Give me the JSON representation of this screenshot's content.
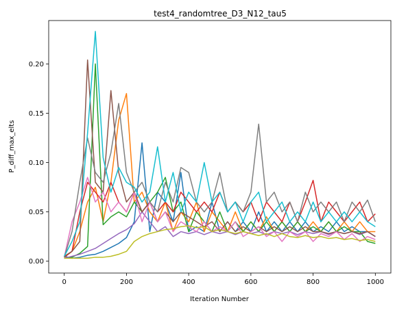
{
  "chart_data": {
    "type": "line",
    "title": "test4_randomtree_D3_N12_tau5",
    "xlabel": "Iteration Number",
    "ylabel": "P_diff_max_elts",
    "xlim": [
      -50,
      1050
    ],
    "ylim": [
      -0.012,
      0.244
    ],
    "xticks": [
      0,
      200,
      400,
      600,
      800,
      1000
    ],
    "yticks": [
      0.0,
      0.05,
      0.1,
      0.15,
      0.2
    ],
    "ytick_labels": [
      "0.00",
      "0.05",
      "0.10",
      "0.15",
      "0.20"
    ],
    "grid": false,
    "series": [
      {
        "color": "#1f77b4",
        "x": [
          0,
          25,
          50,
          75,
          100,
          125,
          150,
          175,
          200,
          225,
          250,
          275,
          300,
          325,
          350,
          375,
          400,
          425,
          450,
          475,
          500,
          525,
          550,
          575,
          600,
          625,
          650,
          675,
          700,
          725,
          750,
          775,
          800,
          825,
          850,
          875,
          900,
          925,
          950,
          975,
          1000
        ],
        "y": [
          0.005,
          0.003,
          0.004,
          0.006,
          0.007,
          0.01,
          0.014,
          0.018,
          0.024,
          0.04,
          0.12,
          0.03,
          0.07,
          0.06,
          0.04,
          0.09,
          0.03,
          0.035,
          0.03,
          0.06,
          0.03,
          0.04,
          0.03,
          0.04,
          0.03,
          0.05,
          0.03,
          0.04,
          0.03,
          0.04,
          0.03,
          0.04,
          0.03,
          0.035,
          0.03,
          0.04,
          0.03,
          0.035,
          0.03,
          0.03,
          0.025
        ]
      },
      {
        "color": "#ff7f0e",
        "x": [
          0,
          25,
          50,
          75,
          100,
          125,
          150,
          175,
          200,
          225,
          250,
          275,
          300,
          325,
          350,
          375,
          400,
          425,
          450,
          475,
          500,
          525,
          550,
          575,
          600,
          625,
          650,
          675,
          700,
          725,
          750,
          775,
          800,
          825,
          850,
          875,
          900,
          925,
          950,
          975,
          1000
        ],
        "y": [
          0.004,
          0.01,
          0.03,
          0.06,
          0.075,
          0.04,
          0.08,
          0.143,
          0.17,
          0.06,
          0.07,
          0.05,
          0.04,
          0.06,
          0.03,
          0.05,
          0.04,
          0.06,
          0.03,
          0.05,
          0.04,
          0.03,
          0.05,
          0.03,
          0.04,
          0.03,
          0.045,
          0.03,
          0.04,
          0.03,
          0.04,
          0.03,
          0.04,
          0.03,
          0.04,
          0.03,
          0.04,
          0.03,
          0.04,
          0.03,
          0.03
        ]
      },
      {
        "color": "#2ca02c",
        "x": [
          0,
          25,
          50,
          75,
          100,
          125,
          150,
          175,
          200,
          225,
          250,
          275,
          300,
          325,
          350,
          375,
          400,
          425,
          450,
          475,
          500,
          525,
          550,
          575,
          600,
          625,
          650,
          675,
          700,
          725,
          750,
          775,
          800,
          825,
          850,
          875,
          900,
          925,
          950,
          975,
          1000
        ],
        "y": [
          0.003,
          0.004,
          0.008,
          0.015,
          0.2,
          0.037,
          0.045,
          0.05,
          0.045,
          0.06,
          0.05,
          0.06,
          0.07,
          0.085,
          0.05,
          0.06,
          0.03,
          0.05,
          0.04,
          0.03,
          0.05,
          0.03,
          0.04,
          0.03,
          0.04,
          0.03,
          0.04,
          0.03,
          0.04,
          0.03,
          0.04,
          0.03,
          0.035,
          0.03,
          0.04,
          0.03,
          0.035,
          0.03,
          0.03,
          0.02,
          0.018
        ]
      },
      {
        "color": "#d62728",
        "x": [
          0,
          25,
          50,
          75,
          100,
          125,
          150,
          175,
          200,
          225,
          250,
          275,
          300,
          325,
          350,
          375,
          400,
          425,
          450,
          475,
          500,
          525,
          550,
          575,
          600,
          625,
          650,
          675,
          700,
          725,
          750,
          775,
          800,
          825,
          850,
          875,
          900,
          925,
          950,
          975,
          1000
        ],
        "y": [
          0.004,
          0.01,
          0.05,
          0.08,
          0.07,
          0.06,
          0.08,
          0.06,
          0.05,
          0.07,
          0.05,
          0.06,
          0.05,
          0.06,
          0.05,
          0.07,
          0.06,
          0.05,
          0.06,
          0.05,
          0.07,
          0.05,
          0.06,
          0.05,
          0.06,
          0.04,
          0.06,
          0.05,
          0.04,
          0.06,
          0.04,
          0.06,
          0.082,
          0.04,
          0.06,
          0.05,
          0.04,
          0.05,
          0.06,
          0.04,
          0.048
        ]
      },
      {
        "color": "#9467bd",
        "x": [
          0,
          25,
          50,
          75,
          100,
          125,
          150,
          175,
          200,
          225,
          250,
          275,
          300,
          325,
          350,
          375,
          400,
          425,
          450,
          475,
          500,
          525,
          550,
          575,
          600,
          625,
          650,
          675,
          700,
          725,
          750,
          775,
          800,
          825,
          850,
          875,
          900,
          925,
          950,
          975,
          1000
        ],
        "y": [
          0.003,
          0.005,
          0.007,
          0.01,
          0.013,
          0.018,
          0.023,
          0.028,
          0.032,
          0.038,
          0.05,
          0.04,
          0.03,
          0.035,
          0.025,
          0.03,
          0.028,
          0.03,
          0.027,
          0.03,
          0.028,
          0.03,
          0.027,
          0.03,
          0.028,
          0.03,
          0.027,
          0.03,
          0.028,
          0.03,
          0.027,
          0.03,
          0.028,
          0.03,
          0.027,
          0.03,
          0.028,
          0.03,
          0.027,
          0.03,
          0.025
        ]
      },
      {
        "color": "#8c564b",
        "x": [
          0,
          25,
          50,
          75,
          100,
          125,
          150,
          175,
          200,
          225,
          250,
          275,
          300,
          325,
          350,
          375,
          400,
          425,
          450,
          475,
          500,
          525,
          550,
          575,
          600,
          625,
          650,
          675,
          700,
          725,
          750,
          775,
          800,
          825,
          850,
          875,
          900,
          925,
          950,
          975,
          1000
        ],
        "y": [
          0.005,
          0.01,
          0.02,
          0.204,
          0.08,
          0.07,
          0.173,
          0.09,
          0.06,
          0.07,
          0.05,
          0.06,
          0.04,
          0.05,
          0.04,
          0.05,
          0.045,
          0.04,
          0.035,
          0.04,
          0.03,
          0.04,
          0.03,
          0.035,
          0.03,
          0.035,
          0.03,
          0.035,
          0.03,
          0.035,
          0.03,
          0.035,
          0.03,
          0.03,
          0.028,
          0.03,
          0.028,
          0.03,
          0.028,
          0.03,
          0.025
        ]
      },
      {
        "color": "#e377c2",
        "x": [
          0,
          25,
          50,
          75,
          100,
          125,
          150,
          175,
          200,
          225,
          250,
          275,
          300,
          325,
          350,
          375,
          400,
          425,
          450,
          475,
          500,
          525,
          550,
          575,
          600,
          625,
          650,
          675,
          700,
          725,
          750,
          775,
          800,
          825,
          850,
          875,
          900,
          925,
          950,
          975,
          1000
        ],
        "y": [
          0.004,
          0.04,
          0.06,
          0.085,
          0.06,
          0.07,
          0.05,
          0.06,
          0.05,
          0.07,
          0.04,
          0.06,
          0.04,
          0.05,
          0.03,
          0.04,
          0.035,
          0.03,
          0.04,
          0.03,
          0.035,
          0.03,
          0.04,
          0.025,
          0.03,
          0.035,
          0.025,
          0.03,
          0.02,
          0.03,
          0.025,
          0.03,
          0.02,
          0.028,
          0.025,
          0.03,
          0.022,
          0.028,
          0.02,
          0.025,
          0.022
        ]
      },
      {
        "color": "#7f7f7f",
        "x": [
          0,
          25,
          50,
          75,
          100,
          125,
          150,
          175,
          200,
          225,
          250,
          275,
          300,
          325,
          350,
          375,
          400,
          425,
          450,
          475,
          500,
          525,
          550,
          575,
          600,
          625,
          650,
          675,
          700,
          725,
          750,
          775,
          800,
          825,
          850,
          875,
          900,
          925,
          950,
          975,
          1000
        ],
        "y": [
          0.004,
          0.03,
          0.08,
          0.125,
          0.09,
          0.08,
          0.11,
          0.16,
          0.09,
          0.07,
          0.08,
          0.06,
          0.05,
          0.08,
          0.06,
          0.095,
          0.09,
          0.06,
          0.05,
          0.06,
          0.09,
          0.05,
          0.06,
          0.05,
          0.07,
          0.139,
          0.06,
          0.07,
          0.05,
          0.06,
          0.04,
          0.07,
          0.05,
          0.06,
          0.05,
          0.06,
          0.04,
          0.06,
          0.05,
          0.062,
          0.04
        ]
      },
      {
        "color": "#bcbd22",
        "x": [
          0,
          25,
          50,
          75,
          100,
          125,
          150,
          175,
          200,
          225,
          250,
          275,
          300,
          325,
          350,
          375,
          400,
          425,
          450,
          475,
          500,
          525,
          550,
          575,
          600,
          625,
          650,
          675,
          700,
          725,
          750,
          775,
          800,
          825,
          850,
          875,
          900,
          925,
          950,
          975,
          1000
        ],
        "y": [
          0.003,
          0.003,
          0.003,
          0.003,
          0.004,
          0.004,
          0.005,
          0.007,
          0.01,
          0.02,
          0.025,
          0.028,
          0.03,
          0.032,
          0.033,
          0.035,
          0.036,
          0.034,
          0.035,
          0.03,
          0.032,
          0.03,
          0.028,
          0.03,
          0.028,
          0.026,
          0.028,
          0.025,
          0.028,
          0.025,
          0.024,
          0.026,
          0.024,
          0.025,
          0.023,
          0.024,
          0.022,
          0.023,
          0.021,
          0.022,
          0.02
        ]
      },
      {
        "color": "#17becf",
        "x": [
          0,
          25,
          50,
          75,
          100,
          125,
          150,
          175,
          200,
          225,
          250,
          275,
          300,
          325,
          350,
          375,
          400,
          425,
          450,
          475,
          500,
          525,
          550,
          575,
          600,
          625,
          650,
          675,
          700,
          725,
          750,
          775,
          800,
          825,
          850,
          875,
          900,
          925,
          950,
          975,
          1000
        ],
        "y": [
          0.005,
          0.02,
          0.04,
          0.13,
          0.233,
          0.105,
          0.07,
          0.095,
          0.08,
          0.075,
          0.06,
          0.07,
          0.116,
          0.06,
          0.09,
          0.05,
          0.07,
          0.06,
          0.1,
          0.06,
          0.07,
          0.05,
          0.06,
          0.04,
          0.06,
          0.07,
          0.04,
          0.05,
          0.06,
          0.04,
          0.05,
          0.04,
          0.06,
          0.04,
          0.05,
          0.04,
          0.05,
          0.04,
          0.05,
          0.04,
          0.035
        ]
      }
    ]
  }
}
